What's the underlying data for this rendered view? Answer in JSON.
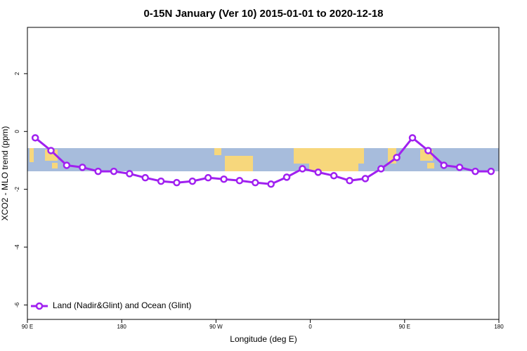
{
  "chart_data": {
    "type": "line",
    "title": "0-15N January (Ver 10)   2015-01-01 to 2020-12-18",
    "x_label": "Longitude (deg E)",
    "y_label": "XCO2 - MLO trend (ppm)",
    "xlim": [
      90,
      540
    ],
    "ylim": [
      -6.5,
      3.6
    ],
    "xticks": [
      {
        "value": 90,
        "label": "90 E"
      },
      180,
      {
        "value": 270,
        "label": "90 W"
      },
      {
        "value": 360,
        "label": "0"
      },
      {
        "value": 450,
        "label": "90 E"
      },
      {
        "value": 540,
        "label": "180"
      }
    ],
    "yticks": [
      -6,
      -4,
      -2,
      0,
      2
    ],
    "legend": "bottom-left",
    "x": [
      97.5,
      112.5,
      127.5,
      142.5,
      157.5,
      172.5,
      187.5,
      202.5,
      217.5,
      232.5,
      247.5,
      262.5,
      277.5,
      292.5,
      307.5,
      322.5,
      337.5,
      352.5,
      367.5,
      382.5,
      397.5,
      412.5,
      427.5,
      442.5,
      457.5,
      472.5,
      487.5,
      502.5,
      517.5,
      532.5
    ],
    "series": [
      {
        "name": "Land (Nadir&Glint) and Ocean (Glint)",
        "color": "#a020f0",
        "values": [
          -0.22,
          -0.66,
          -1.17,
          -1.24,
          -1.38,
          -1.38,
          -1.46,
          -1.6,
          -1.72,
          -1.77,
          -1.72,
          -1.6,
          -1.65,
          -1.7,
          -1.77,
          -1.82,
          -1.58,
          -1.29,
          -1.41,
          -1.53,
          -1.7,
          -1.63,
          -1.29,
          -0.9,
          -0.22,
          -0.66,
          -1.17,
          -1.24,
          -1.38,
          -1.38
        ]
      }
    ]
  }
}
